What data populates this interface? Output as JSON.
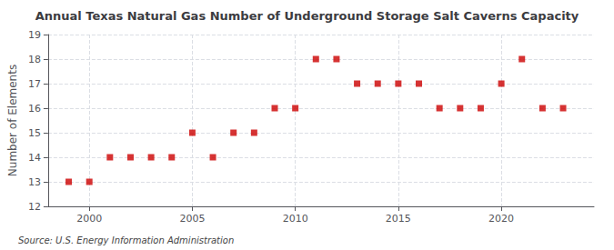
{
  "chart_data": {
    "type": "scatter",
    "title": "Annual Texas Natural Gas Number of Underground Storage Salt Caverns Capacity",
    "ylabel": "Number of Elements",
    "annotation": "Source: U.S. Energy Information Administration",
    "x": [
      1999,
      2000,
      2001,
      2002,
      2003,
      2004,
      2005,
      2006,
      2007,
      2008,
      2009,
      2010,
      2011,
      2012,
      2013,
      2014,
      2015,
      2016,
      2017,
      2018,
      2019,
      2020,
      2021,
      2022,
      2023
    ],
    "values": [
      13,
      13,
      14,
      14,
      14,
      14,
      15,
      14,
      15,
      15,
      16,
      16,
      18,
      18,
      17,
      17,
      17,
      17,
      16,
      16,
      16,
      17,
      18,
      16,
      16
    ],
    "color": "#cc0000",
    "marker": "square",
    "xlim": [
      1998.0,
      2024.5
    ],
    "ylim": [
      12,
      19
    ],
    "xticks": [
      2000,
      2005,
      2010,
      2015,
      2020
    ],
    "yticks": [
      12,
      13,
      14,
      15,
      16,
      17,
      18,
      19
    ],
    "grid": true
  }
}
